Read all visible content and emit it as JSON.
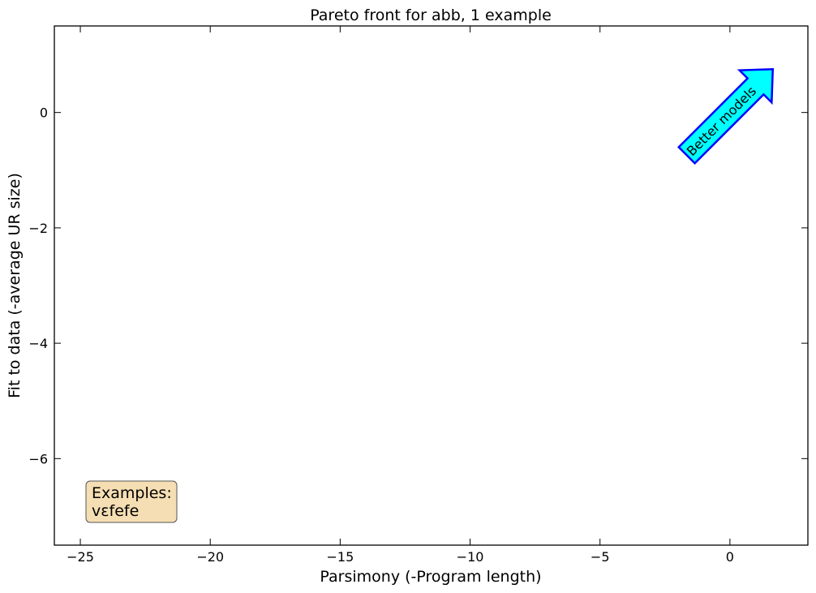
{
  "chart_data": {
    "type": "scatter",
    "title": "Pareto front for abb, 1 example",
    "xlabel": "Parsimony (-Program length)",
    "ylabel": "Fit to data (-average UR size)",
    "xlim": [
      -26,
      3
    ],
    "ylim": [
      -7.5,
      1.5
    ],
    "x_ticks": [
      -25,
      -20,
      -15,
      -10,
      -5,
      0
    ],
    "x_tick_labels": [
      "−25",
      "−20",
      "−15",
      "−10",
      "−5",
      "0"
    ],
    "y_ticks": [
      0,
      -2,
      -4,
      -6
    ],
    "y_tick_labels": [
      "0",
      "−2",
      "−4",
      "−6"
    ],
    "grid": false,
    "series": [],
    "annotations": {
      "arrow_text": "Better models",
      "arrow_fill": "#00ffff",
      "arrow_edge": "#0000ff",
      "examples_box": {
        "line1": "Examples:",
        "line2": "vɛfefe",
        "fill": "#f5deb3"
      }
    }
  }
}
